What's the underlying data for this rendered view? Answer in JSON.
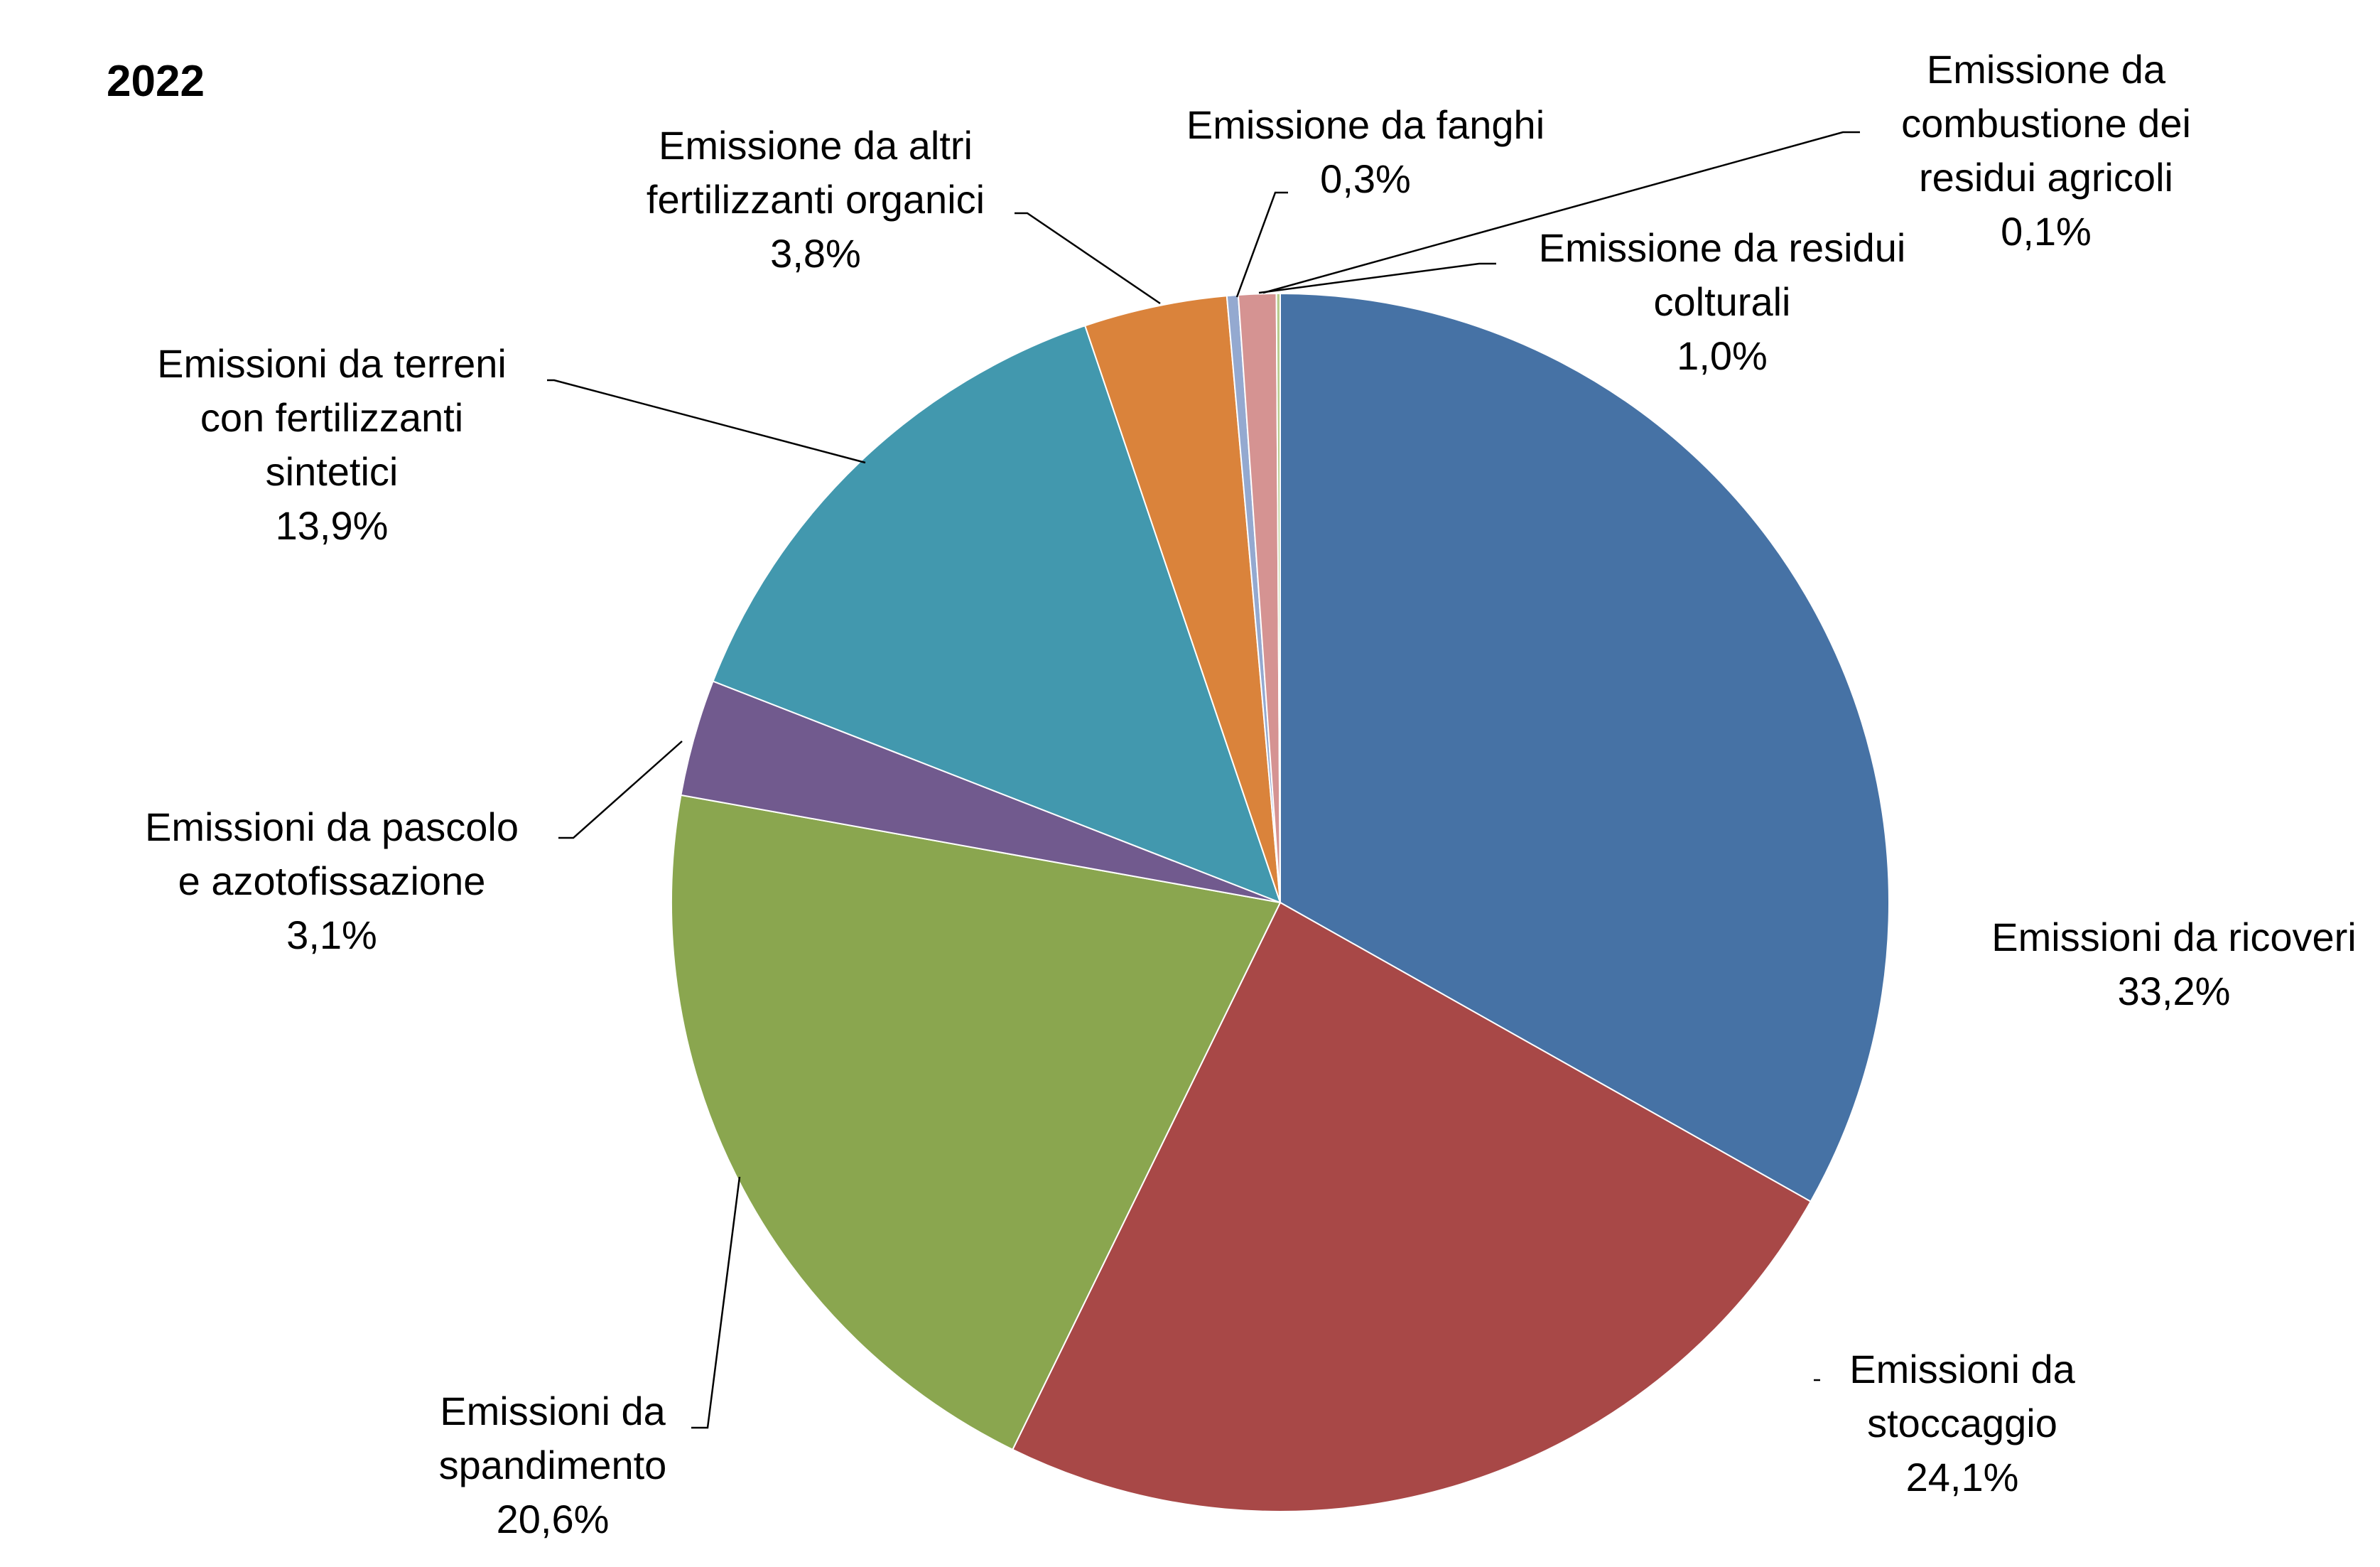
{
  "chart_data": {
    "type": "pie",
    "title": "2022",
    "slices": [
      {
        "label_lines": [
          "Emissioni da ricoveri"
        ],
        "value": 33.2,
        "value_label": "33,2%",
        "color": "#4672A5"
      },
      {
        "label_lines": [
          "Emissioni da",
          "stoccaggio"
        ],
        "value": 24.1,
        "value_label": "24,1%",
        "color": "#A84847"
      },
      {
        "label_lines": [
          "Emissioni da",
          "spandimento"
        ],
        "value": 20.6,
        "value_label": "20,6%",
        "color": "#8AA64F"
      },
      {
        "label_lines": [
          "Emissioni da pascolo",
          "e azotofissazione"
        ],
        "value": 3.1,
        "value_label": "3,1%",
        "color": "#715A8E"
      },
      {
        "label_lines": [
          "Emissioni da terreni",
          "con fertilizzanti",
          "sintetici"
        ],
        "value": 13.9,
        "value_label": "13,9%",
        "color": "#4298AE"
      },
      {
        "label_lines": [
          "Emissione da altri",
          "fertilizzanti organici"
        ],
        "value": 3.8,
        "value_label": "3,8%",
        "color": "#DA833B"
      },
      {
        "label_lines": [
          "Emissione da fanghi"
        ],
        "value": 0.3,
        "value_label": "0,3%",
        "color": "#94A9D0"
      },
      {
        "label_lines": [
          "Emissione da residui",
          "colturali"
        ],
        "value": 1.0,
        "value_label": "1,0%",
        "color": "#D59392"
      },
      {
        "label_lines": [
          "Emissione da",
          "combustione dei",
          "residui agricoli"
        ],
        "value": 0.1,
        "value_label": "0,1%",
        "color": "#B7CC8F"
      }
    ]
  }
}
